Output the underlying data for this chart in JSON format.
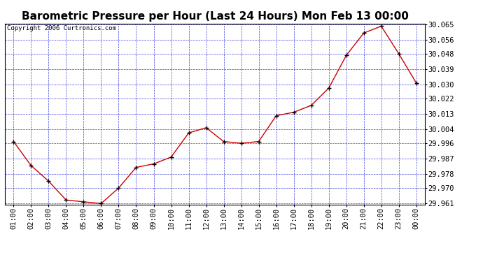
{
  "title": "Barometric Pressure per Hour (Last 24 Hours) Mon Feb 13 00:00",
  "copyright": "Copyright 2006 Curtronics.com",
  "x_labels": [
    "01:00",
    "02:00",
    "03:00",
    "04:00",
    "05:00",
    "06:00",
    "07:00",
    "08:00",
    "09:00",
    "10:00",
    "11:00",
    "12:00",
    "13:00",
    "14:00",
    "15:00",
    "16:00",
    "17:00",
    "18:00",
    "19:00",
    "20:00",
    "21:00",
    "22:00",
    "23:00",
    "00:00"
  ],
  "y_values": [
    29.997,
    29.983,
    29.974,
    29.963,
    29.962,
    29.961,
    29.97,
    29.982,
    29.984,
    29.988,
    30.002,
    30.005,
    29.997,
    29.996,
    29.997,
    30.012,
    30.014,
    30.018,
    30.028,
    30.047,
    30.06,
    30.064,
    30.048,
    30.031
  ],
  "ylim_min": 29.9605,
  "ylim_max": 30.0655,
  "yticks": [
    29.961,
    29.97,
    29.978,
    29.987,
    29.996,
    30.004,
    30.013,
    30.022,
    30.03,
    30.039,
    30.048,
    30.056,
    30.065
  ],
  "line_color": "#cc0000",
  "marker_color": "#000000",
  "grid_color": "#0000cc",
  "bg_color": "#ffffff",
  "outer_bg_color": "#ffffff",
  "title_fontsize": 11,
  "copyright_fontsize": 6.5,
  "tick_fontsize": 7.5
}
